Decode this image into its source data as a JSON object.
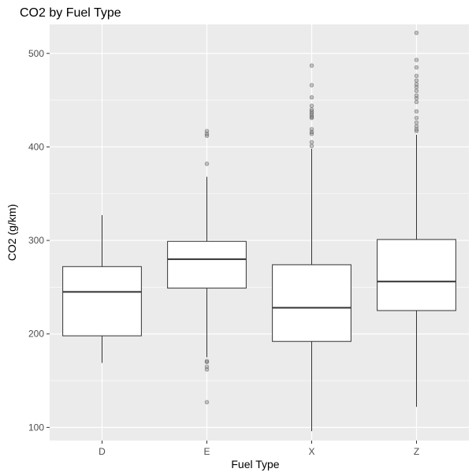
{
  "chart_data": {
    "type": "boxplot",
    "title": "CO2 by Fuel Type",
    "xlabel": "Fuel Type",
    "ylabel": "CO2 (g/km)",
    "ylim": [
      86,
      531
    ],
    "yticks": [
      100,
      200,
      300,
      400,
      500
    ],
    "categories": [
      "D",
      "E",
      "X",
      "Z"
    ],
    "grid": true,
    "background_color": "#ebebeb",
    "grid_color": "#ffffff",
    "box_fill": "#ffffff",
    "line_color": "#333333",
    "outlier_color": "#808080",
    "boxes": [
      {
        "category": "D",
        "lower_whisker": 169,
        "q1": 198,
        "median": 245,
        "q3": 272,
        "upper_whisker": 327,
        "outliers": []
      },
      {
        "category": "E",
        "lower_whisker": 175,
        "q1": 249,
        "median": 280,
        "q3": 299,
        "upper_whisker": 368,
        "outliers": [
          127,
          162,
          165,
          170,
          171,
          382,
          412,
          414,
          417
        ]
      },
      {
        "category": "X",
        "lower_whisker": 96,
        "q1": 192,
        "median": 228,
        "q3": 274,
        "upper_whisker": 398,
        "outliers": [
          401,
          405,
          414,
          416,
          419,
          431,
          432,
          434,
          436,
          438,
          440,
          444,
          453,
          466,
          487
        ]
      },
      {
        "category": "Z",
        "lower_whisker": 122,
        "q1": 225,
        "median": 256,
        "q3": 301,
        "upper_whisker": 413,
        "outliers": [
          417,
          419,
          422,
          426,
          431,
          438,
          448,
          452,
          455,
          460,
          464,
          467,
          471,
          476,
          485,
          493,
          522
        ]
      }
    ]
  }
}
